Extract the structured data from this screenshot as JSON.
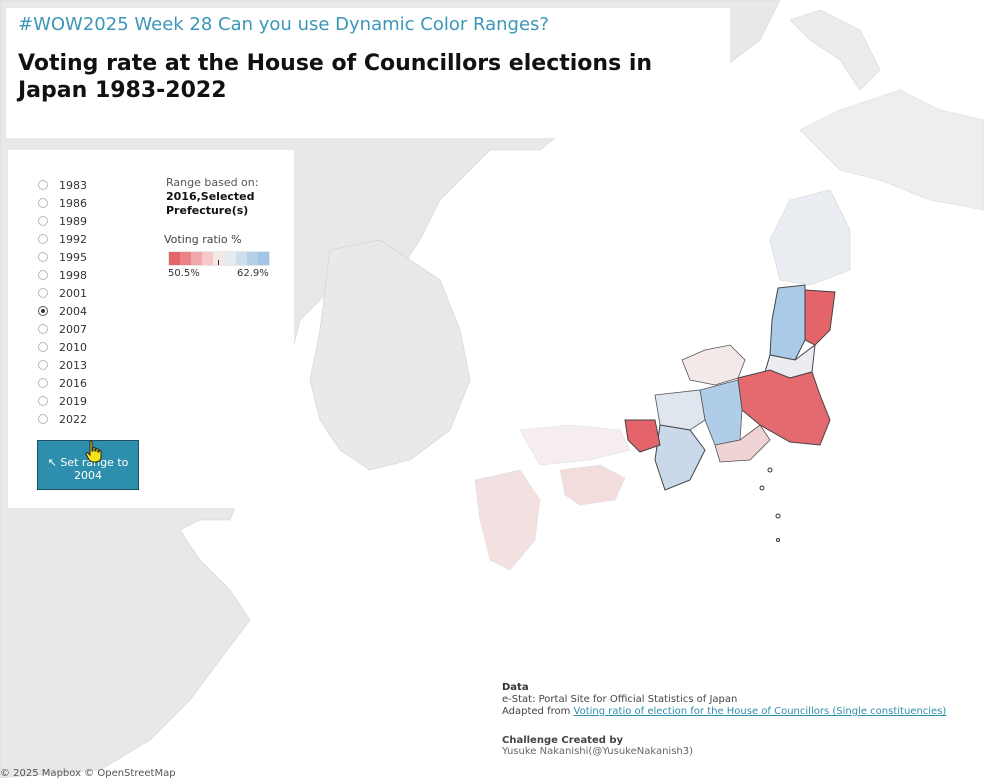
{
  "header": {
    "subtitle": "#WOW2025 Week 28 Can you use Dynamic Color Ranges?",
    "title": "Voting rate at the House of Councillors elections in Japan 1983-2022"
  },
  "filter": {
    "years": [
      "1983",
      "1986",
      "1989",
      "1992",
      "1995",
      "1998",
      "2001",
      "2004",
      "2007",
      "2010",
      "2013",
      "2016",
      "2019",
      "2022"
    ],
    "selected": "2004"
  },
  "range": {
    "label": "Range based on:",
    "value": "2016,Selected Prefecture(s)"
  },
  "legend": {
    "title": "Voting ratio %",
    "min": "50.5%",
    "max": "62.9%",
    "colors": [
      "#e4646a",
      "#ea8288",
      "#f0a7aa",
      "#f5c9ca",
      "#f3e8e8",
      "#e6ebf1",
      "#cfdeec",
      "#b4cfe8",
      "#a3c6e6"
    ]
  },
  "button": {
    "icon": "arrow-cursor-icon",
    "label": "Set range to 2004"
  },
  "info": {
    "data_heading": "Data",
    "source": "e-Stat: Portal Site for Official Statistics of Japan",
    "adapted_prefix": "Adapted from",
    "adapted_link": "Voting ratio of election for the House of Councillors (Single constituencies)",
    "credits_heading": "Challenge Created by",
    "credits_name": "Yusuke Nakanishi(@YusukeNakanish3)"
  },
  "attribution": "© 2025 Mapbox © OpenStreetMap",
  "colors": {
    "accent": "#2e8ead",
    "land": "#e8e8e8",
    "sea": "#ffffff",
    "low": "#e4646a",
    "high": "#a3c6e6"
  }
}
